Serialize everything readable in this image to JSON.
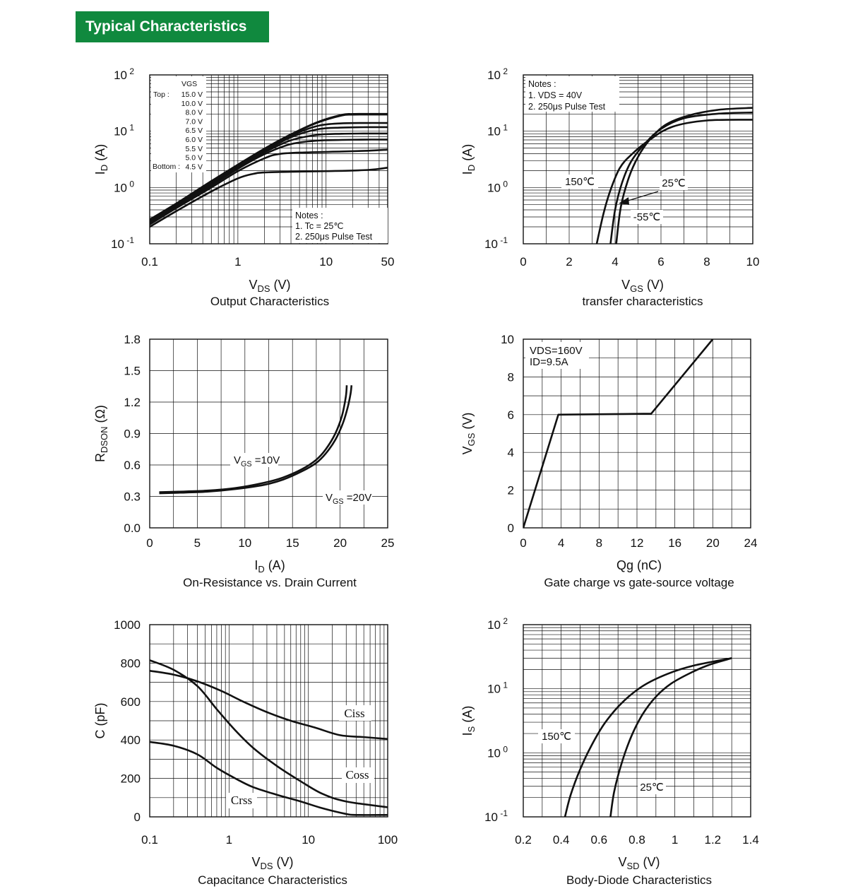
{
  "header": {
    "title": "Typical Characteristics"
  },
  "chart_data": [
    {
      "id": "output",
      "type": "line",
      "title": "Output Characteristics",
      "xlabel": "V",
      "xlabel_sub": "DS",
      "xlabel_unit": " (V)",
      "ylabel": "I",
      "ylabel_sub": "D",
      "ylabel_unit": " (A)",
      "xscale": "log",
      "yscale": "log",
      "xlim": [
        0.1,
        50
      ],
      "ylim": [
        0.1,
        100
      ],
      "xticks": [
        {
          "v": 0.1,
          "label": "0.1"
        },
        {
          "v": 1,
          "label": "1"
        },
        {
          "v": 10,
          "label": "10"
        },
        {
          "v": 50,
          "label": "50"
        }
      ],
      "yticks": [
        {
          "v": 100,
          "label": "10",
          "exp": "2"
        },
        {
          "v": 10,
          "label": "10",
          "exp": "1"
        },
        {
          "v": 1,
          "label": "10",
          "exp": "0"
        },
        {
          "v": 0.1,
          "label": "10",
          "exp": "-1"
        }
      ],
      "grid": true,
      "legend": {
        "header": "VGS",
        "top_label": "Top :",
        "bottom_label": "Bottom :",
        "entries": [
          "15.0 V",
          "10.0 V",
          "8.0 V",
          "7.0 V",
          "6.5 V",
          "6.0 V",
          "5.5 V",
          "5.0 V",
          "4.5 V"
        ]
      },
      "notes": [
        "Notes :",
        "1. Tc = 25℃",
        "2. 250μs Pulse Test"
      ],
      "series": [
        {
          "x": [
            0.1,
            0.2,
            0.5,
            1,
            2,
            4,
            8,
            15,
            20,
            30,
            50
          ],
          "y": [
            0.27,
            0.52,
            1.3,
            2.55,
            4.9,
            8.8,
            14.5,
            19.5,
            20.2,
            20.3,
            20.3
          ]
        },
        {
          "x": [
            0.1,
            0.2,
            0.5,
            1,
            2,
            4,
            8,
            15,
            20,
            30,
            50
          ],
          "y": [
            0.26,
            0.5,
            1.25,
            2.5,
            4.8,
            8.7,
            14.2,
            19.0,
            19.7,
            19.8,
            19.8
          ]
        },
        {
          "x": [
            0.1,
            0.2,
            0.5,
            1,
            2,
            4,
            8,
            15,
            30,
            50
          ],
          "y": [
            0.25,
            0.48,
            1.2,
            2.4,
            4.6,
            8.3,
            12.4,
            13.8,
            14.0,
            14.0
          ]
        },
        {
          "x": [
            0.1,
            0.2,
            0.5,
            1,
            2,
            4,
            8,
            15,
            30,
            50
          ],
          "y": [
            0.24,
            0.47,
            1.15,
            2.3,
            4.4,
            7.8,
            10.8,
            11.6,
            11.8,
            11.8
          ]
        },
        {
          "x": [
            0.1,
            0.2,
            0.5,
            1,
            2,
            4,
            8,
            15,
            30,
            50
          ],
          "y": [
            0.235,
            0.46,
            1.1,
            2.25,
            4.2,
            6.9,
            8.6,
            9.0,
            9.1,
            9.1
          ]
        },
        {
          "x": [
            0.1,
            0.2,
            0.5,
            1,
            2,
            4,
            8,
            15,
            30,
            50
          ],
          "y": [
            0.23,
            0.45,
            1.08,
            2.15,
            3.9,
            5.9,
            6.8,
            7.0,
            7.1,
            7.1
          ]
        },
        {
          "x": [
            0.1,
            0.2,
            0.5,
            1,
            2,
            3,
            6,
            15,
            30,
            50
          ],
          "y": [
            0.22,
            0.43,
            1.0,
            1.95,
            3.3,
            3.95,
            4.2,
            4.35,
            4.5,
            4.7
          ]
        },
        {
          "x": [
            0.1,
            0.2,
            0.5,
            1,
            1.5,
            2,
            4,
            10,
            30,
            50
          ],
          "y": [
            0.2,
            0.38,
            0.85,
            1.45,
            1.75,
            1.85,
            1.9,
            1.95,
            2.05,
            2.25
          ]
        }
      ]
    },
    {
      "id": "transfer",
      "type": "line",
      "title": "transfer characteristics",
      "xlabel": "V",
      "xlabel_sub": "GS",
      "xlabel_unit": "  (V)",
      "ylabel": "I",
      "ylabel_sub": "D",
      "ylabel_unit": " (A)",
      "xscale": "linear",
      "yscale": "log",
      "xlim": [
        0,
        10
      ],
      "ylim": [
        0.1,
        100
      ],
      "xticks": [
        {
          "v": 0,
          "label": "0"
        },
        {
          "v": 2,
          "label": "2"
        },
        {
          "v": 4,
          "label": "4"
        },
        {
          "v": 6,
          "label": "6"
        },
        {
          "v": 8,
          "label": "8"
        },
        {
          "v": 10,
          "label": "10"
        }
      ],
      "yticks": [
        {
          "v": 100,
          "label": "10",
          "exp": "2"
        },
        {
          "v": 10,
          "label": "10",
          "exp": "1"
        },
        {
          "v": 1,
          "label": "10",
          "exp": "0"
        },
        {
          "v": 0.1,
          "label": "10",
          "exp": "-1"
        }
      ],
      "grid": true,
      "notes": [
        "Notes :",
        "1. VDS = 40V",
        "2. 250μs Pulse Test"
      ],
      "annotations": [
        "150℃",
        "25℃",
        "-55℃"
      ],
      "series": [
        {
          "name": "150℃",
          "x": [
            3.2,
            3.5,
            3.8,
            4.2,
            4.7,
            5.5,
            6.5,
            8,
            10
          ],
          "y": [
            0.1,
            0.35,
            0.9,
            2.2,
            3.8,
            7.0,
            12.0,
            15.5,
            16.0
          ]
        },
        {
          "name": "25℃",
          "x": [
            3.8,
            4.0,
            4.3,
            4.7,
            5.3,
            6.0,
            7.0,
            8.5,
            10
          ],
          "y": [
            0.1,
            0.4,
            1.2,
            2.9,
            6.0,
            11.0,
            17.0,
            20.5,
            21.5
          ]
        },
        {
          "name": "-55℃",
          "x": [
            4.05,
            4.25,
            4.6,
            5.0,
            5.5,
            6.2,
            7.2,
            8.5,
            10
          ],
          "y": [
            0.1,
            0.45,
            1.5,
            3.5,
            7.0,
            13.0,
            19.0,
            24.0,
            26.0
          ]
        }
      ]
    },
    {
      "id": "rdson",
      "type": "line",
      "title": "On-Resistance vs. Drain Current",
      "xlabel": "I",
      "xlabel_sub": "D",
      "xlabel_unit": "  (A)",
      "ylabel": "R",
      "ylabel_sub": "DSON",
      "ylabel_unit": " (Ω)",
      "xscale": "linear",
      "yscale": "linear",
      "xlim": [
        0,
        25
      ],
      "ylim": [
        0,
        1.8
      ],
      "xticks": [
        {
          "v": 0,
          "label": "0"
        },
        {
          "v": 5,
          "label": "5"
        },
        {
          "v": 10,
          "label": "10"
        },
        {
          "v": 15,
          "label": "15"
        },
        {
          "v": 20,
          "label": "20"
        },
        {
          "v": 25,
          "label": "25"
        }
      ],
      "yticks": [
        {
          "v": 0,
          "label": "0.0"
        },
        {
          "v": 0.3,
          "label": "0.3"
        },
        {
          "v": 0.6,
          "label": "0.6"
        },
        {
          "v": 0.9,
          "label": "0.9"
        },
        {
          "v": 1.2,
          "label": "1.2"
        },
        {
          "v": 1.5,
          "label": "1.5"
        },
        {
          "v": 1.8,
          "label": "1.8"
        }
      ],
      "grid": true,
      "annotations": [
        {
          "main": "V",
          "sub": "GS",
          "rest": " =10V"
        },
        {
          "main": "V",
          "sub": "GS",
          "rest": " =20V"
        }
      ],
      "series": [
        {
          "name": "VGS=10V",
          "x": [
            1,
            3,
            6,
            9,
            12,
            14,
            16,
            17.5,
            18.5,
            19.5,
            20.2,
            20.6,
            20.7
          ],
          "y": [
            0.34,
            0.345,
            0.355,
            0.38,
            0.43,
            0.48,
            0.56,
            0.65,
            0.75,
            0.9,
            1.07,
            1.25,
            1.36
          ]
        },
        {
          "name": "VGS=20V",
          "x": [
            1,
            3,
            6,
            9,
            12,
            14,
            16,
            17.5,
            18.5,
            19.5,
            20.3,
            20.8,
            21.1,
            21.2
          ],
          "y": [
            0.33,
            0.335,
            0.345,
            0.37,
            0.41,
            0.46,
            0.54,
            0.62,
            0.71,
            0.84,
            1.0,
            1.15,
            1.28,
            1.36
          ]
        }
      ]
    },
    {
      "id": "gatecharge",
      "type": "line",
      "title": "Gate charge vs gate-source voltage",
      "xlabel": "Qg (nC)",
      "ylabel": "V",
      "ylabel_sub": "GS",
      "ylabel_unit": " (V)",
      "xscale": "linear",
      "yscale": "linear",
      "xlim": [
        0,
        24
      ],
      "ylim": [
        0,
        10
      ],
      "xticks": [
        {
          "v": 0,
          "label": "0"
        },
        {
          "v": 4,
          "label": "4"
        },
        {
          "v": 8,
          "label": "8"
        },
        {
          "v": 12,
          "label": "12"
        },
        {
          "v": 16,
          "label": "16"
        },
        {
          "v": 20,
          "label": "20"
        },
        {
          "v": 24,
          "label": "24"
        }
      ],
      "yticks": [
        {
          "v": 0,
          "label": "0"
        },
        {
          "v": 2,
          "label": "2"
        },
        {
          "v": 4,
          "label": "4"
        },
        {
          "v": 6,
          "label": "6"
        },
        {
          "v": 8,
          "label": "8"
        },
        {
          "v": 10,
          "label": "10"
        }
      ],
      "grid": true,
      "notes": [
        "VDS=160V",
        "ID=9.5A"
      ],
      "series": [
        {
          "x": [
            0,
            3.7,
            13.5,
            20
          ],
          "y": [
            0,
            6.0,
            6.05,
            10
          ]
        }
      ]
    },
    {
      "id": "capacitance",
      "type": "line",
      "title": "Capacitance Characteristics",
      "xlabel": "V",
      "xlabel_sub": "DS",
      "xlabel_unit": " (V)",
      "ylabel": "C (pF)",
      "xscale": "log",
      "yscale": "linear",
      "xlim": [
        0.1,
        100
      ],
      "ylim": [
        0,
        1000
      ],
      "xticks": [
        {
          "v": 0.1,
          "label": "0.1"
        },
        {
          "v": 1,
          "label": "1"
        },
        {
          "v": 10,
          "label": "10"
        },
        {
          "v": 100,
          "label": "100"
        }
      ],
      "yticks": [
        {
          "v": 0,
          "label": "0"
        },
        {
          "v": 200,
          "label": "200"
        },
        {
          "v": 400,
          "label": "400"
        },
        {
          "v": 600,
          "label": "600"
        },
        {
          "v": 800,
          "label": "800"
        },
        {
          "v": 1000,
          "label": "1000"
        }
      ],
      "grid": true,
      "annotations": [
        "Ciss",
        "Coss",
        "Crss"
      ],
      "series": [
        {
          "name": "Ciss",
          "x": [
            0.1,
            0.2,
            0.4,
            0.8,
            1.5,
            3,
            6,
            12,
            25,
            50,
            100
          ],
          "y": [
            760,
            740,
            705,
            655,
            600,
            545,
            500,
            465,
            425,
            415,
            405
          ]
        },
        {
          "name": "Coss",
          "x": [
            0.1,
            0.2,
            0.4,
            0.7,
            1.2,
            2,
            4,
            8,
            15,
            30,
            100
          ],
          "y": [
            815,
            765,
            680,
            560,
            450,
            360,
            265,
            185,
            120,
            80,
            50
          ]
        },
        {
          "name": "Crss",
          "x": [
            0.1,
            0.2,
            0.4,
            0.7,
            1.2,
            2,
            4,
            8,
            15,
            30,
            40,
            100
          ],
          "y": [
            390,
            370,
            325,
            255,
            200,
            155,
            115,
            80,
            45,
            15,
            10,
            10
          ]
        }
      ]
    },
    {
      "id": "bodydiode",
      "type": "line",
      "title": "Body-Diode Characteristics",
      "xlabel": "V",
      "xlabel_sub": "SD",
      "xlabel_unit": " (V)",
      "ylabel": "I",
      "ylabel_sub": "S",
      "ylabel_unit": " (A)",
      "xscale": "linear",
      "yscale": "log",
      "xlim": [
        0.2,
        1.4
      ],
      "ylim": [
        0.1,
        100
      ],
      "xticks": [
        {
          "v": 0.2,
          "label": "0.2"
        },
        {
          "v": 0.4,
          "label": "0.4"
        },
        {
          "v": 0.6,
          "label": "0.6"
        },
        {
          "v": 0.8,
          "label": "0.8"
        },
        {
          "v": 1.0,
          "label": "1"
        },
        {
          "v": 1.2,
          "label": "1.2"
        },
        {
          "v": 1.4,
          "label": "1.4"
        }
      ],
      "yticks": [
        {
          "v": 100,
          "label": "10",
          "exp": "2"
        },
        {
          "v": 10,
          "label": "10",
          "exp": "1"
        },
        {
          "v": 1,
          "label": "10",
          "exp": "0"
        },
        {
          "v": 0.1,
          "label": "10",
          "exp": "-1"
        }
      ],
      "grid": true,
      "annotations": [
        "150℃",
        "25℃"
      ],
      "series": [
        {
          "name": "150℃",
          "x": [
            0.42,
            0.45,
            0.5,
            0.56,
            0.63,
            0.72,
            0.83,
            0.96,
            1.1,
            1.3
          ],
          "y": [
            0.1,
            0.22,
            0.55,
            1.3,
            2.9,
            6.0,
            11.0,
            17.0,
            23.0,
            30.0
          ]
        },
        {
          "name": "25℃",
          "x": [
            0.66,
            0.68,
            0.72,
            0.77,
            0.83,
            0.9,
            0.98,
            1.08,
            1.18,
            1.3
          ],
          "y": [
            0.1,
            0.25,
            0.7,
            1.8,
            4.0,
            7.5,
            12.0,
            17.5,
            23.5,
            30.0
          ]
        }
      ]
    }
  ]
}
